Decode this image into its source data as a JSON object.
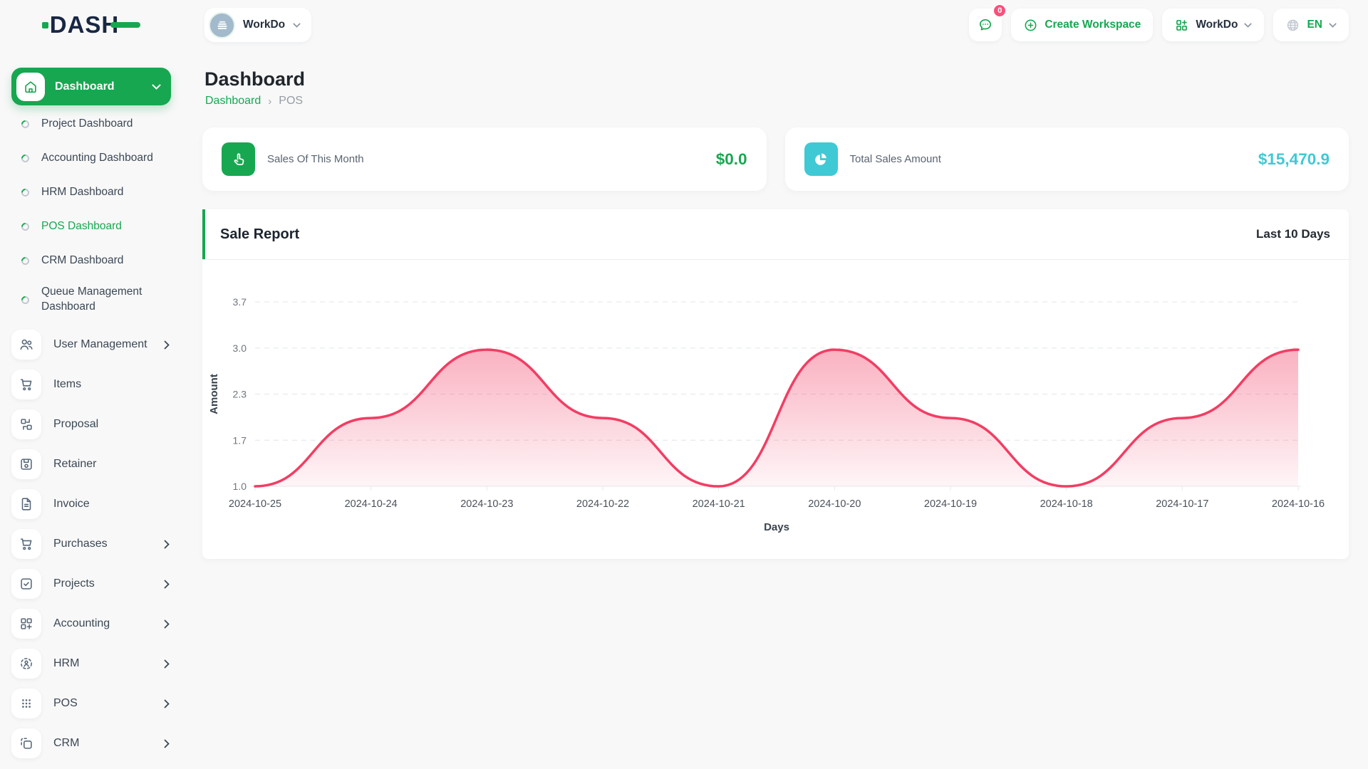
{
  "brand": {
    "logo_text": "DASH"
  },
  "header": {
    "workspace_button": {
      "label": "WorkDo"
    },
    "messages_badge": "0",
    "create_workspace_label": "Create Workspace",
    "workdo_menu_label": "WorkDo",
    "language": "EN"
  },
  "sidebar": {
    "dashboard": {
      "label": "Dashboard",
      "children": [
        {
          "label": "Project Dashboard"
        },
        {
          "label": "Accounting Dashboard"
        },
        {
          "label": "HRM Dashboard"
        },
        {
          "label": "POS Dashboard",
          "active": true
        },
        {
          "label": "CRM Dashboard"
        },
        {
          "label": "Queue Management Dashboard"
        }
      ]
    },
    "items": [
      {
        "label": "User Management",
        "icon": "users-icon",
        "expandable": true
      },
      {
        "label": "Items",
        "icon": "cart-icon",
        "expandable": false
      },
      {
        "label": "Proposal",
        "icon": "proposal-icon",
        "expandable": false
      },
      {
        "label": "Retainer",
        "icon": "retainer-icon",
        "expandable": false
      },
      {
        "label": "Invoice",
        "icon": "invoice-icon",
        "expandable": false
      },
      {
        "label": "Purchases",
        "icon": "cart-icon",
        "expandable": true
      },
      {
        "label": "Projects",
        "icon": "check-square-icon",
        "expandable": true
      },
      {
        "label": "Accounting",
        "icon": "grid-plus-icon",
        "expandable": true
      },
      {
        "label": "HRM",
        "icon": "person-target-icon",
        "expandable": true
      },
      {
        "label": "POS",
        "icon": "dots-grid-icon",
        "expandable": true
      },
      {
        "label": "CRM",
        "icon": "overlap-squares-icon",
        "expandable": true
      }
    ]
  },
  "page": {
    "title": "Dashboard",
    "breadcrumb_root": "Dashboard",
    "breadcrumb_current": "POS"
  },
  "stats": [
    {
      "label": "Sales Of This Month",
      "value": "$0.0",
      "accent": "#17A750",
      "icon": "tap-icon"
    },
    {
      "label": "Total Sales Amount",
      "value": "$15,470.9",
      "accent": "#3FC9D5",
      "icon": "pie-chart-icon"
    }
  ],
  "chart_card": {
    "title": "Sale Report",
    "range_label": "Last 10 Days"
  },
  "chart_data": {
    "type": "area",
    "title": "Sale Report",
    "x": [
      "2024-10-25",
      "2024-10-24",
      "2024-10-23",
      "2024-10-22",
      "2024-10-21",
      "2024-10-20",
      "2024-10-19",
      "2024-10-18",
      "2024-10-17",
      "2024-10-16"
    ],
    "values": [
      1,
      2,
      3,
      2,
      1,
      3,
      2,
      1,
      2,
      3
    ],
    "xlabel": "Days",
    "ylabel": "Amount",
    "yticks": [
      3.7,
      3.0,
      2.3,
      1.7,
      1.0
    ],
    "ylim": [
      1.0,
      3.7
    ],
    "line_color": "#F23D63",
    "fill_color": "#F23D63",
    "grid": true,
    "legend": "none"
  },
  "colors": {
    "primary_green": "#17A750",
    "badge_pink": "#F8507C",
    "chart_pink": "#F23D63",
    "cyan": "#3FC9D5",
    "page_bg": "#f8f8f8"
  }
}
